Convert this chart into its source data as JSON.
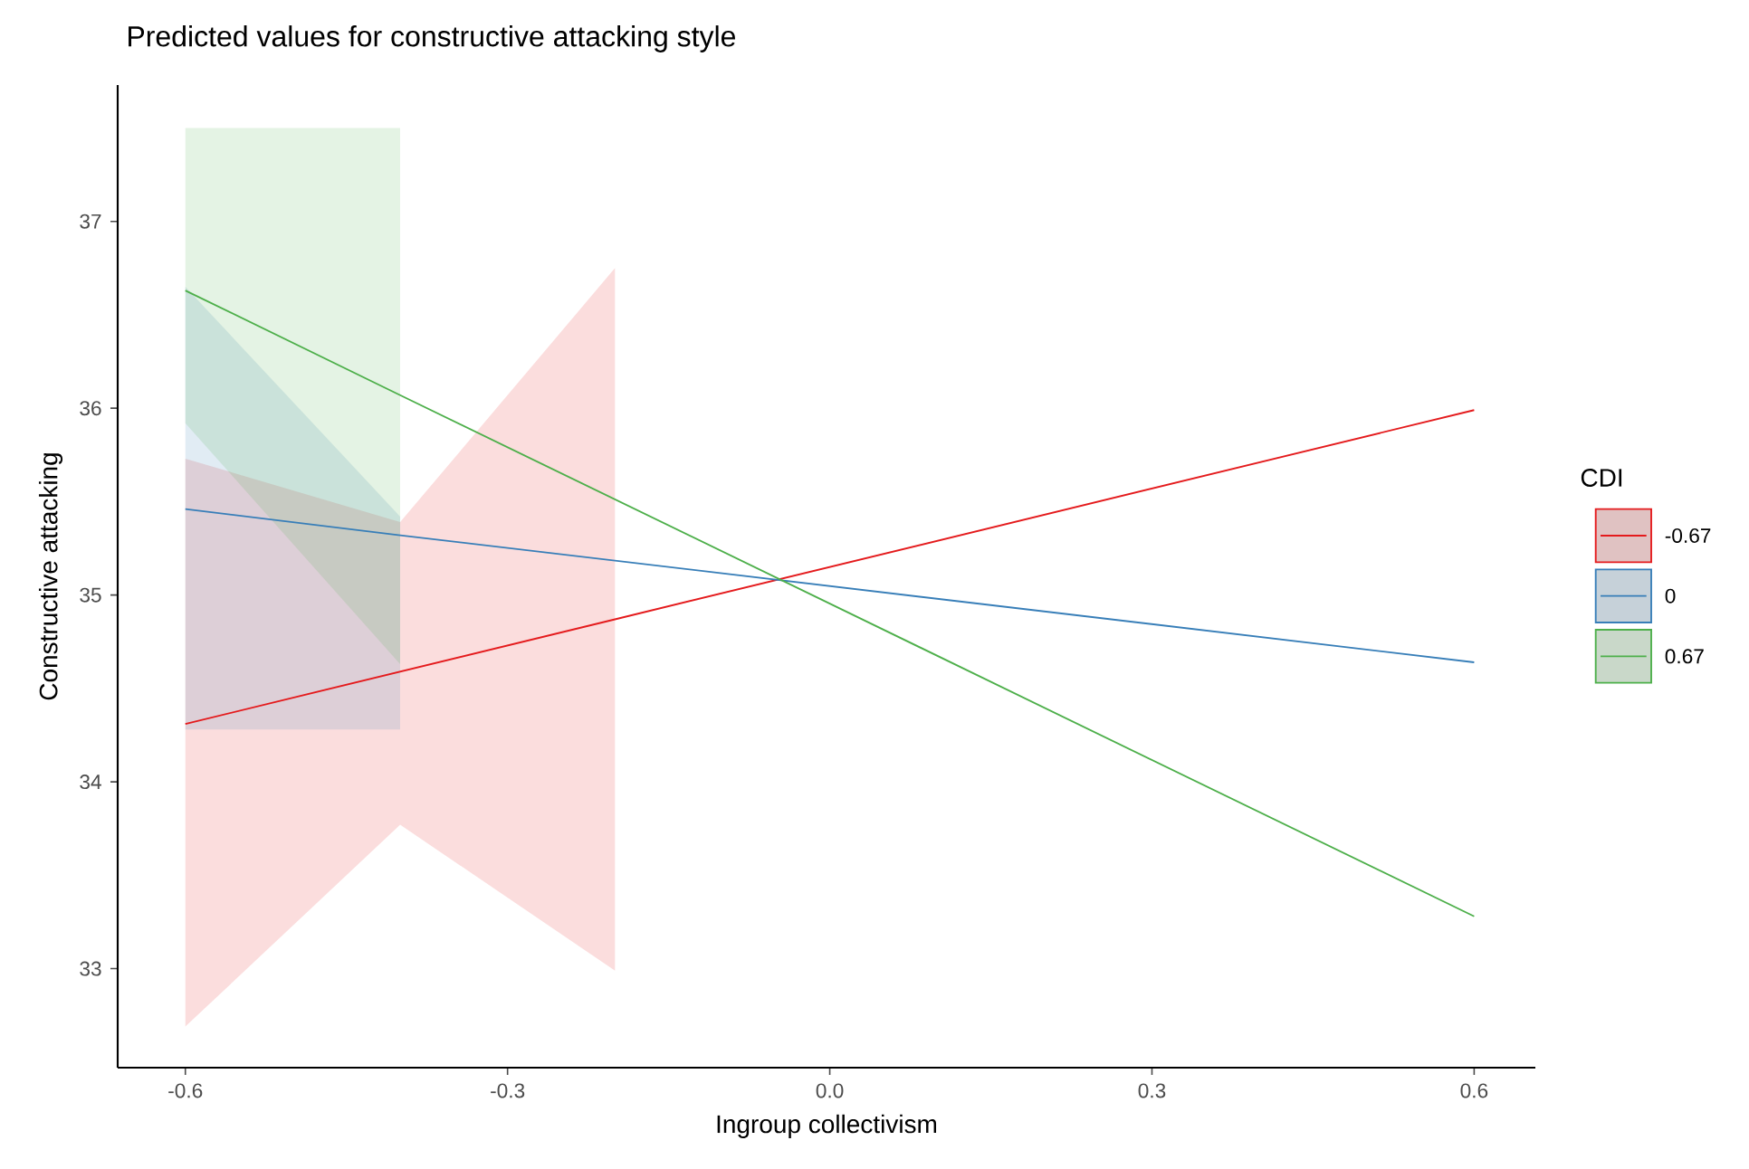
{
  "chart_data": {
    "type": "line",
    "title": "Predicted values for constructive attacking style",
    "xlabel": "Ingroup collectivism",
    "ylabel": "Constructive attacking",
    "legend_title": "CDI",
    "legend": "right",
    "grid": false,
    "marker": "none",
    "line_style": "solid",
    "xlim": [
      -0.663,
      0.657
    ],
    "ylim": [
      32.47,
      37.73
    ],
    "xticks": [
      -0.6,
      -0.3,
      {
        "value": 0,
        "label": "0.0"
      },
      0.3,
      0.6
    ],
    "yticks": [
      33,
      34,
      35,
      36,
      37
    ],
    "series": [
      {
        "name": "-0.67",
        "color": "#e41a1c",
        "x": [
          -0.6,
          -0.4,
          -0.2,
          0.6
        ],
        "values": [
          34.31,
          34.59,
          34.87,
          35.99
        ],
        "lower": [
          32.69,
          33.77,
          32.99,
          null
        ],
        "upper": [
          35.73,
          35.39,
          36.75,
          null
        ]
      },
      {
        "name": "0",
        "color": "#377eb8",
        "x": [
          -0.6,
          -0.4,
          0.6
        ],
        "values": [
          35.46,
          35.32,
          34.64
        ],
        "lower": [
          34.28,
          34.28,
          null
        ],
        "upper": [
          36.65,
          35.42,
          null
        ]
      },
      {
        "name": "0.67",
        "color": "#4daf4a",
        "x": [
          -0.6,
          -0.4,
          0.6
        ],
        "values": [
          36.63,
          36.07,
          33.28
        ],
        "lower": [
          35.92,
          34.63,
          null
        ],
        "upper": [
          37.5,
          37.5,
          null
        ]
      }
    ]
  }
}
